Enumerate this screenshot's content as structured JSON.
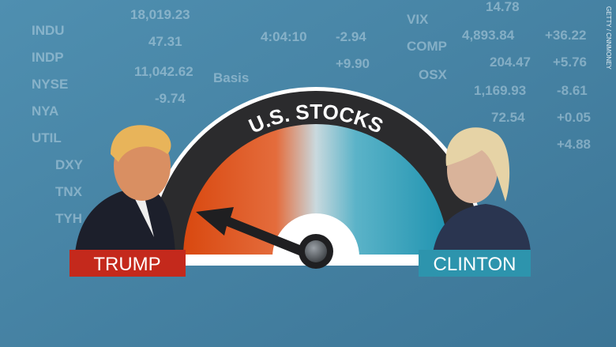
{
  "gauge": {
    "title": "U.S. STOCKS"
  },
  "labels": {
    "left": "TRUMP",
    "right": "CLINTON"
  },
  "credit": "GETTY / CNNMONEY",
  "ticker": [
    "INDU",
    "18,019.23",
    "INDP",
    "47.31",
    "NYSE",
    "11,042.62",
    "NYA",
    "-9.74",
    "Basis",
    "UTIL",
    "DXY",
    "TNX",
    "TYH",
    "4:04:10",
    "-2.94",
    "+9.90",
    "VIX",
    "14.78",
    "COMP",
    "4,893.84",
    "+36.22",
    "OSX",
    "204.47",
    "+5.76",
    "1,169.93",
    "-8.61",
    "72.54",
    "+0.05",
    "+4.88"
  ]
}
